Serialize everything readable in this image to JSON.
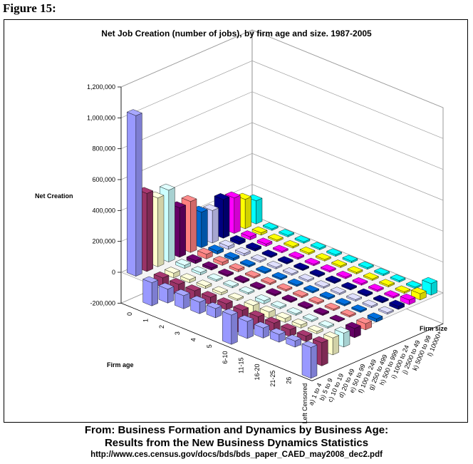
{
  "figure_label": "Figure 15:",
  "source": {
    "line1": "From: Business Formation and Dynamics by Business Age:",
    "line2": "Results from the New Business Dynamics Statistics",
    "url": "http://www.ces.census.gov/docs/bds/bds_paper_CAED_may2008_dec2.pdf"
  },
  "chart_data": {
    "type": "bar3d",
    "title": "Net Job Creation (number of jobs), by firm age and size. 1987-2005",
    "ylabel": "Net Creation",
    "xlabel": "Firm age",
    "zlabel": "Firm size",
    "ylim": [
      -200000,
      1200000
    ],
    "yticks": [
      "-200,000",
      "0",
      "200,000",
      "400,000",
      "600,000",
      "800,000",
      "1,000,000",
      "1,200,000"
    ],
    "ytick_values": [
      -200000,
      0,
      200000,
      400000,
      600000,
      800000,
      1000000,
      1200000
    ],
    "firm_age": [
      "0",
      "1",
      "2",
      "3",
      "4",
      "5",
      "6-10",
      "11-15",
      "16-20",
      "21-25",
      "26",
      "Left Censored"
    ],
    "firm_size": [
      "a) 1 to 4",
      "b) 5 to 9",
      "c) 10 to 19",
      "d) 20 to 49",
      "e) 50 to 99",
      "f) 100 to 249",
      "g) 250 to 499",
      "h) 500 to 999",
      "i) 1000 to 24",
      "j) 2500 to 49",
      "k) 5000 to 99",
      "l) 10000+"
    ],
    "size_colors": [
      "#9999ff",
      "#993366",
      "#ffffcc",
      "#ccffff",
      "#660066",
      "#ff8080",
      "#0066cc",
      "#ccccff",
      "#000080",
      "#ff00ff",
      "#ffff00",
      "#00ffff"
    ],
    "grid": true,
    "legend": "none",
    "values": [
      [
        1040000,
        505000,
        445000,
        465000,
        320000,
        330000,
        230000,
        210000,
        250000,
        230000,
        190000,
        150000
      ],
      [
        -150000,
        -60000,
        -30000,
        20000,
        20000,
        30000,
        20000,
        20000,
        20000,
        20000,
        15000,
        10000
      ],
      [
        -90000,
        -70000,
        -20000,
        15000,
        15000,
        20000,
        15000,
        15000,
        15000,
        15000,
        10000,
        10000
      ],
      [
        -85000,
        -60000,
        -15000,
        10000,
        10000,
        15000,
        10000,
        10000,
        10000,
        10000,
        10000,
        10000
      ],
      [
        -75000,
        -50000,
        -15000,
        10000,
        10000,
        10000,
        10000,
        10000,
        10000,
        10000,
        10000,
        10000
      ],
      [
        -60000,
        -40000,
        -10000,
        10000,
        10000,
        10000,
        10000,
        10000,
        10000,
        10000,
        10000,
        10000
      ],
      [
        -190000,
        -150000,
        -60000,
        -20000,
        10000,
        10000,
        10000,
        10000,
        10000,
        10000,
        10000,
        10000
      ],
      [
        -110000,
        -90000,
        -40000,
        -10000,
        10000,
        10000,
        10000,
        10000,
        10000,
        10000,
        10000,
        10000
      ],
      [
        -65000,
        -55000,
        -25000,
        -10000,
        10000,
        10000,
        10000,
        10000,
        10000,
        10000,
        10000,
        10000
      ],
      [
        -50000,
        -45000,
        -20000,
        -10000,
        10000,
        10000,
        10000,
        10000,
        10000,
        10000,
        10000,
        10000
      ],
      [
        -40000,
        -35000,
        -15000,
        -10000,
        5000,
        10000,
        10000,
        10000,
        10000,
        10000,
        10000,
        10000
      ],
      [
        -200000,
        -150000,
        -110000,
        -90000,
        -60000,
        -40000,
        -20000,
        10000,
        20000,
        30000,
        40000,
        75000
      ]
    ]
  }
}
